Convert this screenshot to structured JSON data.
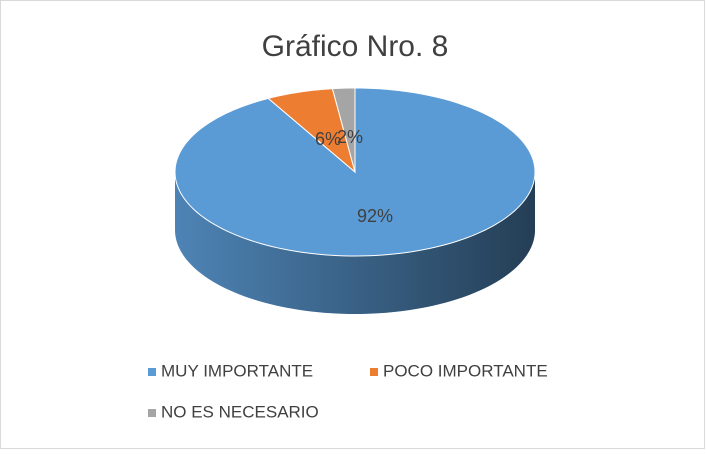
{
  "chart_data": {
    "type": "pie",
    "title": "Gráfico Nro. 8",
    "categories": [
      "MUY IMPORTANTE",
      "POCO IMPORTANTE",
      "NO ES NECESARIO"
    ],
    "values": [
      92,
      6,
      2
    ],
    "value_labels": [
      "92%",
      "6%",
      "2%"
    ],
    "colors": [
      "#5b9bd5",
      "#ed7d31",
      "#a5a5a5"
    ],
    "legend": "bottom"
  }
}
